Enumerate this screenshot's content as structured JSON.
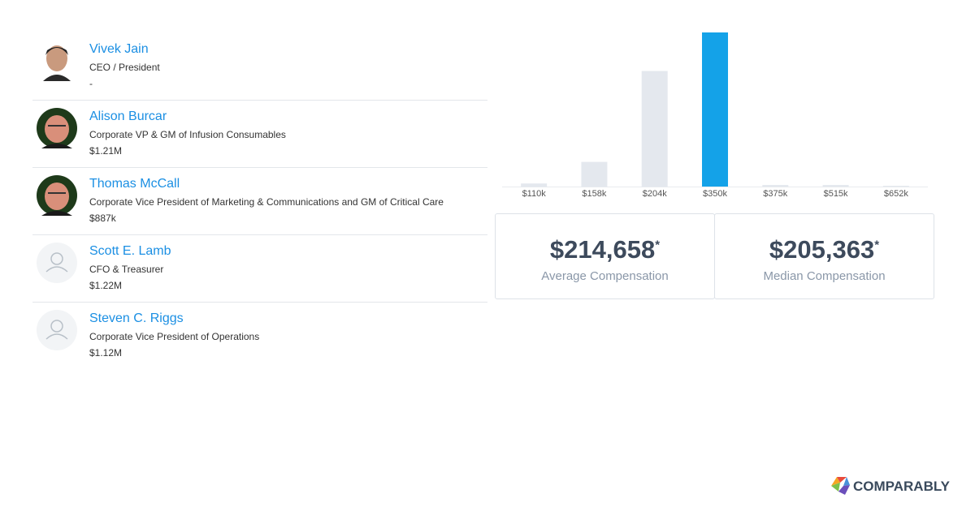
{
  "people": [
    {
      "name": "Vivek Jain",
      "title": "CEO / President",
      "pay": "-"
    },
    {
      "name": "Alison Burcar",
      "title": "Corporate VP & GM of Infusion Consumables",
      "pay": "$1.21M"
    },
    {
      "name": "Thomas McCall",
      "title": "Corporate Vice President of Marketing & Communications and GM of Critical Care",
      "pay": "$887k"
    },
    {
      "name": "Scott E. Lamb",
      "title": "CFO & Treasurer",
      "pay": "$1.22M"
    },
    {
      "name": "Steven C. Riggs",
      "title": "Corporate Vice President of Operations",
      "pay": "$1.12M"
    }
  ],
  "chart_data": {
    "type": "bar",
    "categories": [
      "$110k",
      "$158k",
      "$204k",
      "$350k",
      "$375k",
      "$515k",
      "$652k"
    ],
    "values": [
      2,
      16,
      75,
      100,
      1,
      1,
      0.5
    ],
    "colors": [
      "#e4e8ee",
      "#e4e8ee",
      "#e4e8ee",
      "#14a2e8",
      "#e4e8ee",
      "#e4e8ee",
      "#e4e8ee"
    ],
    "ylim": [
      0,
      100
    ]
  },
  "stats": [
    {
      "value": "$214,658",
      "mark": "*",
      "label": "Average Compensation"
    },
    {
      "value": "$205,363",
      "mark": "*",
      "label": "Median Compensation"
    }
  ],
  "brand": "COMPARABLY"
}
